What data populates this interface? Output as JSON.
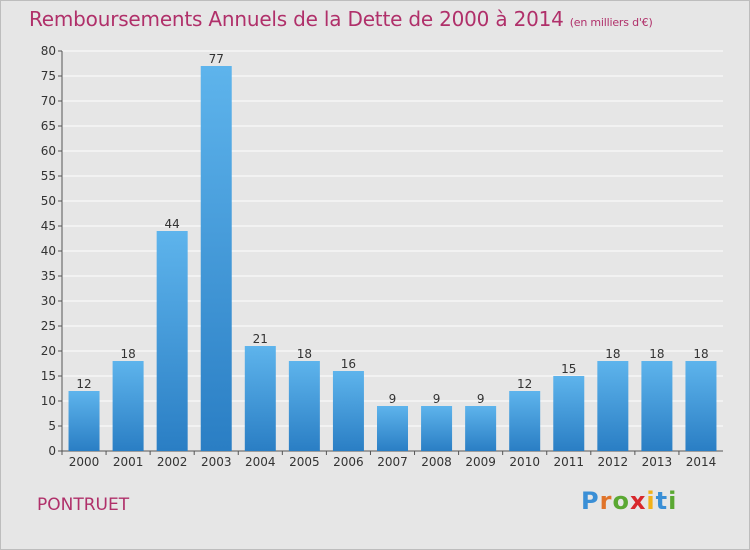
{
  "header": {
    "title": "Remboursements Annuels de la Dette de 2000 à 2014",
    "unit": "(en milliers d'€)"
  },
  "footer": {
    "commune": "PONTRUET",
    "logo_letters": [
      "P",
      "r",
      "o",
      "x",
      "i",
      "t",
      "i"
    ],
    "logo_colors": [
      "#3a8fd6",
      "#e0742a",
      "#5aa832",
      "#d8282c",
      "#f2b21a",
      "#3a8fd6",
      "#5aa832"
    ]
  },
  "colors": {
    "title": "#b0306a",
    "bar_light": "#5eb4ec",
    "bar_dark": "#2a7ec4",
    "background": "#e6e6e6"
  },
  "chart_data": {
    "type": "bar",
    "title": "Remboursements Annuels de la Dette de 2000 à 2014",
    "xlabel": "",
    "ylabel": "",
    "ylim": [
      0,
      80
    ],
    "yticks": [
      0,
      5,
      10,
      15,
      20,
      25,
      30,
      35,
      40,
      45,
      50,
      55,
      60,
      65,
      70,
      75,
      80
    ],
    "grid": true,
    "categories": [
      "2000",
      "2001",
      "2002",
      "2003",
      "2004",
      "2005",
      "2006",
      "2007",
      "2008",
      "2009",
      "2010",
      "2011",
      "2012",
      "2013",
      "2014"
    ],
    "values": [
      12,
      18,
      44,
      77,
      21,
      18,
      16,
      9,
      9,
      9,
      12,
      15,
      18,
      18,
      18
    ],
    "value_labels": [
      "12",
      "18",
      "44",
      "77",
      "21",
      "18",
      "16",
      "9",
      "9",
      "9",
      "12",
      "15",
      "18",
      "18",
      "18"
    ]
  }
}
